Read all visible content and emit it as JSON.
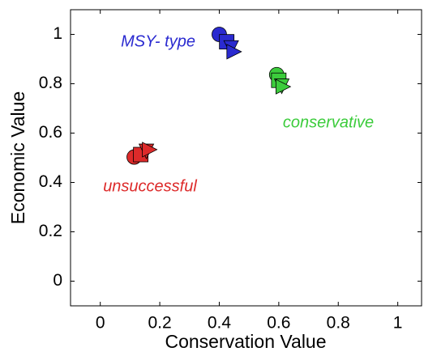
{
  "chart_data": {
    "type": "scatter",
    "xlabel": "Conservation Value",
    "ylabel": "Economic Value",
    "xlim": [
      -0.1,
      1.08
    ],
    "ylim": [
      -0.1,
      1.1
    ],
    "xticks": [
      0,
      0.2,
      0.4,
      0.6,
      0.8,
      1
    ],
    "yticks": [
      0,
      0.2,
      0.4,
      0.6,
      0.8,
      1
    ],
    "markers": [
      "circle",
      "square",
      "triangle-down",
      "triangle-right"
    ],
    "series": [
      {
        "name": "MSY- type",
        "color": "#2a2ad0",
        "x": [
          0.4,
          0.425,
          0.44,
          0.45
        ],
        "values": [
          1.0,
          0.97,
          0.945,
          0.93
        ]
      },
      {
        "name": "conservative",
        "color": "#3ccc3c",
        "x": [
          0.593,
          0.6,
          0.61,
          0.615
        ],
        "values": [
          0.837,
          0.814,
          0.79,
          0.788
        ]
      },
      {
        "name": "unsuccessful",
        "color": "#dd2a2a",
        "x": [
          0.114,
          0.136,
          0.155,
          0.166
        ],
        "values": [
          0.503,
          0.513,
          0.526,
          0.533
        ]
      }
    ]
  }
}
